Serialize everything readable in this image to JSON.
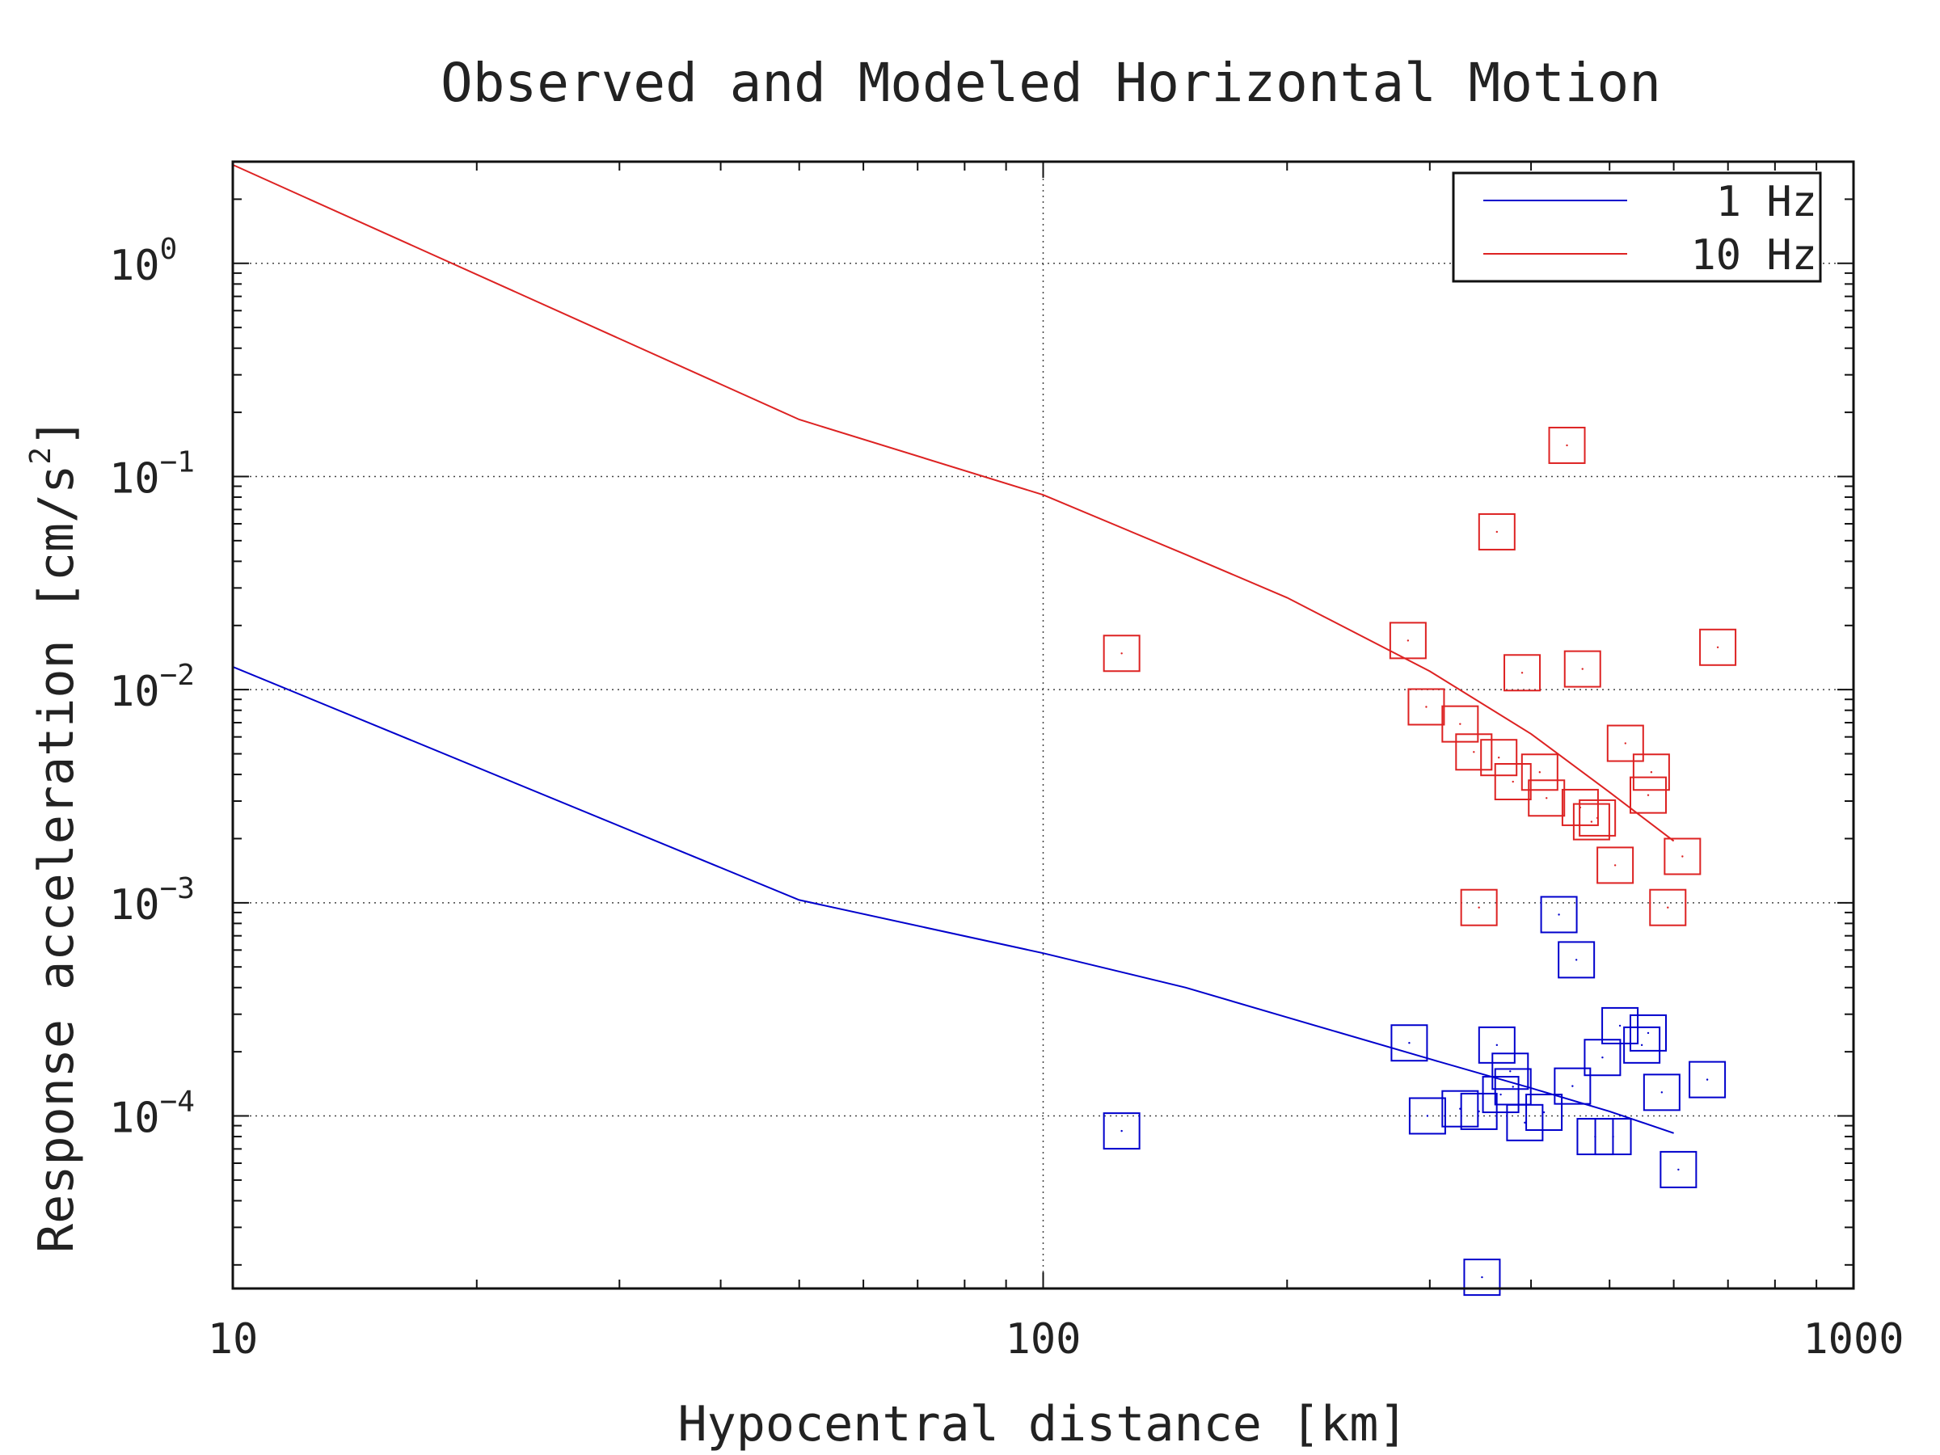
{
  "chart_data": {
    "type": "scatter",
    "title": "Observed and Modeled Horizontal Motion",
    "xlabel": "Hypocentral distance [km]",
    "ylabel_text": "Response acceleration [cm/s",
    "ylabel_sup": "2",
    "ylabel_close": "]",
    "x_scale": "log",
    "y_scale": "log",
    "xlim": [
      10,
      1000
    ],
    "ylim": [
      1.55e-05,
      3.0
    ],
    "grid": true,
    "x_ticks": [
      {
        "value": 10,
        "label": "10"
      },
      {
        "value": 100,
        "label": "100"
      },
      {
        "value": 1000,
        "label": "1000"
      }
    ],
    "y_ticks": [
      {
        "value": 1,
        "base": "10",
        "exp": "0"
      },
      {
        "value": 0.1,
        "base": "10",
        "exp": "−1"
      },
      {
        "value": 0.01,
        "base": "10",
        "exp": "−2"
      },
      {
        "value": 0.001,
        "base": "10",
        "exp": "−3"
      },
      {
        "value": 0.0001,
        "base": "10",
        "exp": "−4"
      }
    ],
    "legend_position": "top-right",
    "series": [
      {
        "name": "1 Hz",
        "color": "#0000cc",
        "model": [
          [
            10,
            0.0128
          ],
          [
            50,
            0.00103
          ],
          [
            100,
            0.00058
          ],
          [
            150,
            0.0004
          ],
          [
            200,
            0.00029
          ],
          [
            300,
            0.000185
          ],
          [
            400,
            0.000135
          ],
          [
            500,
            0.000105
          ],
          [
            600,
            8.3e-05
          ]
        ],
        "observed": [
          [
            125,
            8.5e-05
          ],
          [
            283,
            0.00022
          ],
          [
            298,
            0.0001
          ],
          [
            327,
            0.000108
          ],
          [
            345,
            0.000105
          ],
          [
            348,
            1.75e-05
          ],
          [
            363,
            0.000215
          ],
          [
            367,
            0.000126
          ],
          [
            377,
            0.000162
          ],
          [
            380,
            0.000137
          ],
          [
            393,
            9.3e-05
          ],
          [
            415,
            0.000104
          ],
          [
            433,
            0.00088
          ],
          [
            455,
            0.00054
          ],
          [
            450,
            0.000138
          ],
          [
            480,
            8e-05
          ],
          [
            490,
            0.000188
          ],
          [
            505,
            8e-05
          ],
          [
            515,
            0.000265
          ],
          [
            548,
            0.000215
          ],
          [
            558,
            0.000245
          ],
          [
            580,
            0.000129
          ],
          [
            608,
            5.6e-05
          ],
          [
            660,
            0.000148
          ]
        ]
      },
      {
        "name": "10 Hz",
        "color": "#dd2222",
        "model": [
          [
            10,
            2.9
          ],
          [
            50,
            0.185
          ],
          [
            100,
            0.082
          ],
          [
            150,
            0.043
          ],
          [
            200,
            0.027
          ],
          [
            300,
            0.0122
          ],
          [
            400,
            0.0062
          ],
          [
            500,
            0.0033
          ],
          [
            600,
            0.00195
          ]
        ],
        "observed": [
          [
            125,
            0.0148
          ],
          [
            282,
            0.017
          ],
          [
            297,
            0.0083
          ],
          [
            327,
            0.0069
          ],
          [
            340,
            0.0051
          ],
          [
            345,
            0.00095
          ],
          [
            365,
            0.0048
          ],
          [
            363,
            0.055
          ],
          [
            380,
            0.0037
          ],
          [
            390,
            0.012
          ],
          [
            410,
            0.0041
          ],
          [
            418,
            0.0031
          ],
          [
            443,
            0.14
          ],
          [
            460,
            0.0028
          ],
          [
            463,
            0.0125
          ],
          [
            475,
            0.0024
          ],
          [
            483,
            0.0025
          ],
          [
            508,
            0.0015
          ],
          [
            523,
            0.0056
          ],
          [
            558,
            0.0032
          ],
          [
            563,
            0.0041
          ],
          [
            590,
            0.00095
          ],
          [
            615,
            0.00165
          ],
          [
            680,
            0.0158
          ]
        ]
      }
    ]
  }
}
